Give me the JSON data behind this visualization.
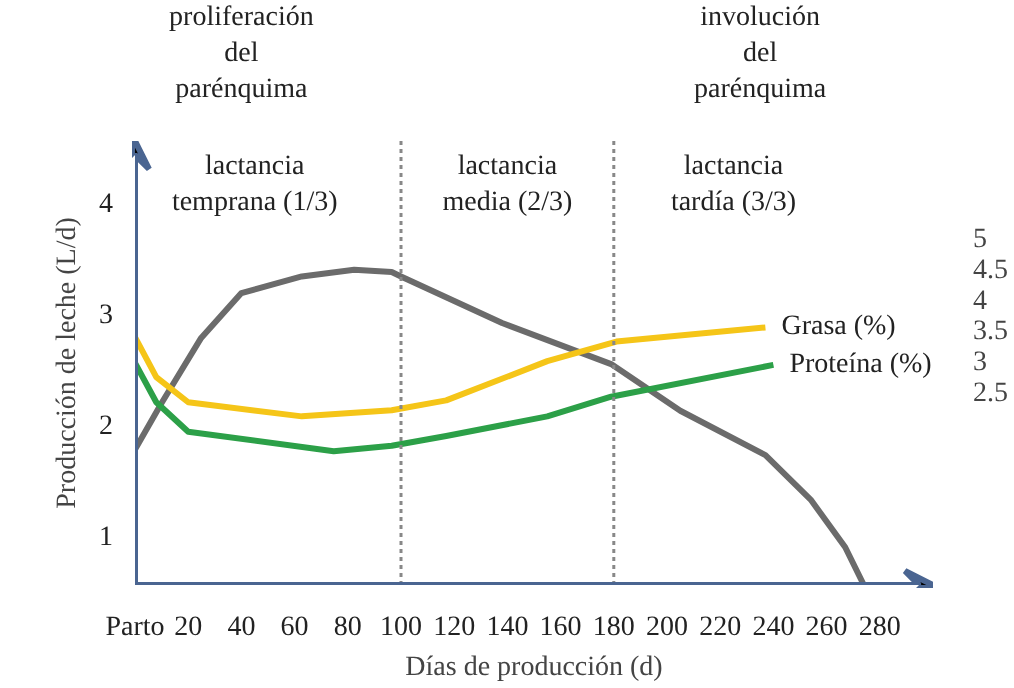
{
  "chart_data": {
    "type": "line",
    "xlabel": "Días de producción (d)",
    "ylabel": "Producción de leche (L/d)",
    "x": [
      0,
      10,
      24.7,
      40,
      62.7,
      82.4,
      96.5,
      100,
      138,
      179,
      205,
      237,
      254,
      267,
      274
    ],
    "xlim": [
      0,
      300
    ],
    "xticks": [
      {
        "value": 0,
        "label": "Parto"
      },
      20,
      40,
      60,
      80,
      100,
      120,
      140,
      160,
      180,
      200,
      220,
      240,
      260,
      280
    ],
    "ylim": [
      0.55,
      4.55
    ],
    "yticks": [
      1,
      2,
      3,
      4
    ],
    "y2lim": [
      -0.67,
      6.57
    ],
    "y2ticks": [
      2.5,
      3,
      3.5,
      4,
      4.5,
      5
    ],
    "series": [
      {
        "color": "#6b6b6b",
        "values": [
          1.77,
          2.19,
          2.77,
          3.18,
          3.33,
          3.39,
          3.37,
          3.33,
          2.91,
          2.54,
          2.12,
          1.72,
          1.32,
          0.89,
          0.55
        ]
      },
      {
        "name": "Grasa (%)",
        "axis": "y2",
        "color": "#f5c518",
        "x": [
          0,
          8,
          20,
          62.7,
          96.5,
          117,
          155,
          181,
          237
        ],
        "values": [
          3.37,
          2.72,
          2.31,
          2.08,
          2.18,
          2.34,
          2.98,
          3.3,
          3.53
        ]
      },
      {
        "name": "Proteína (%)",
        "axis": "y2",
        "color": "#2ca048",
        "x": [
          0,
          8,
          20,
          74.7,
          96.5,
          117,
          155,
          179,
          240
        ],
        "values": [
          2.95,
          2.31,
          1.83,
          1.51,
          1.6,
          1.76,
          2.08,
          2.4,
          2.92
        ]
      }
    ],
    "ref_lines": [
      {
        "axis": "x",
        "value": 100,
        "color": "#888888",
        "line_style": "dotted"
      },
      {
        "axis": "x",
        "value": 180,
        "color": "#888888",
        "line_style": "dotted"
      }
    ],
    "annotations": [
      "proliferación\ndel\nparénquima",
      "involución\ndel\nparénquima",
      "lactancia\ntemprana (1/3)",
      "lactancia\nmedia (2/3)",
      "lactancia\ntardía (3/3)"
    ],
    "grid": false,
    "legend": false
  }
}
